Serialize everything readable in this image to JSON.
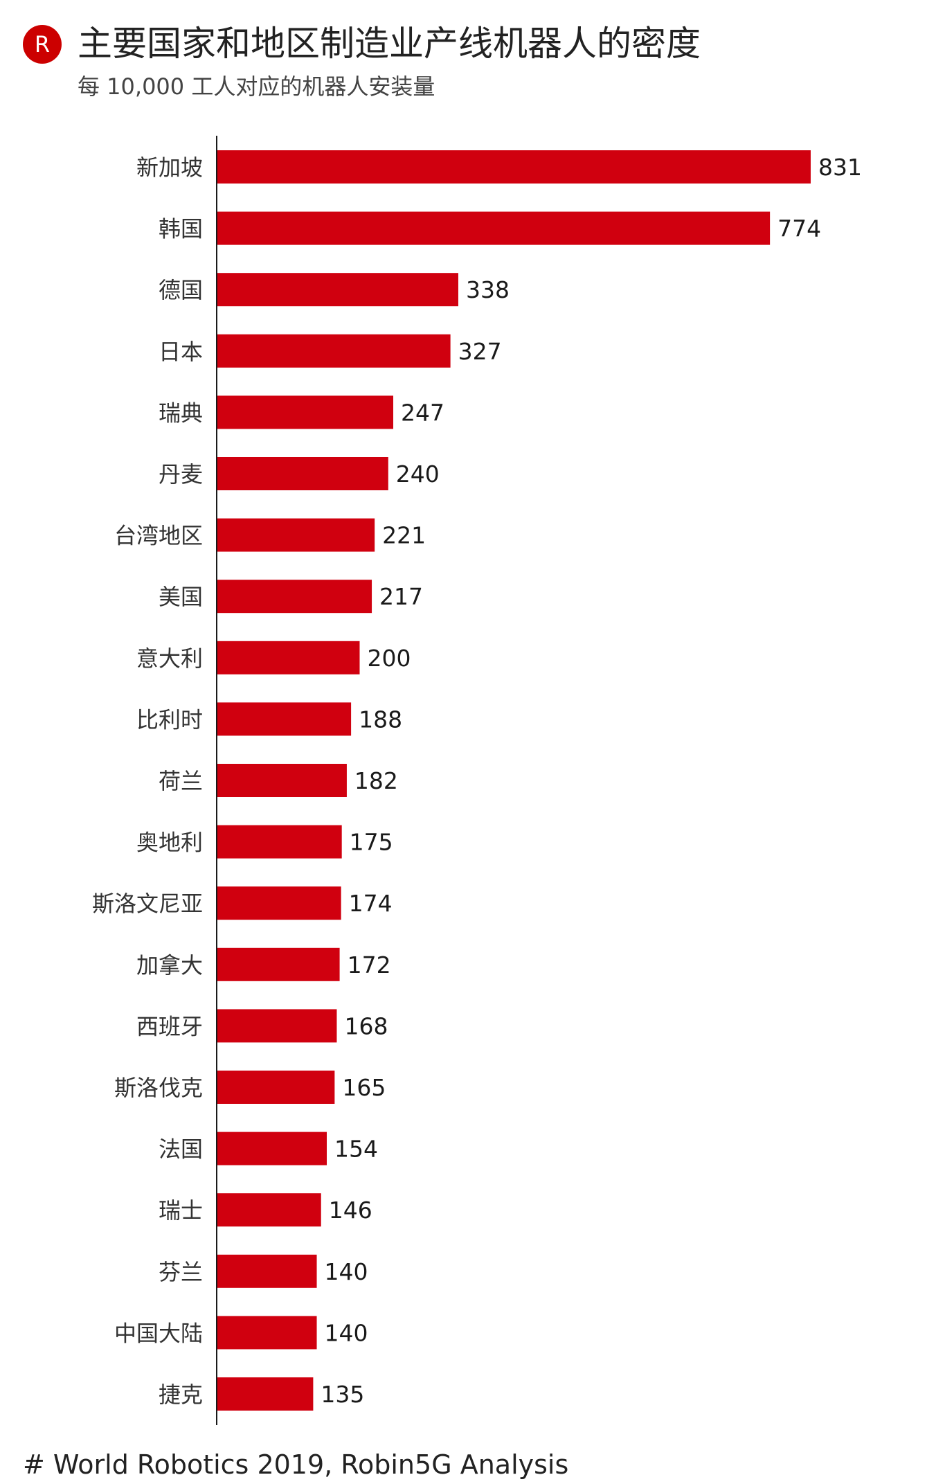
{
  "header": {
    "logo_letter": "R",
    "title": "主要国家和地区制造业产线机器人的密度",
    "subtitle": "每 10,000 工人对应的机器人安装量"
  },
  "footer": {
    "source": "# World Robotics 2019, Robin5G Analysis"
  },
  "colors": {
    "bar": "#d0000f",
    "logo": "#cc0000",
    "axis": "#1a1a1a",
    "text": "#222222"
  },
  "chart_data": {
    "type": "bar",
    "orientation": "horizontal",
    "categories": [
      "新加坡",
      "韩国",
      "德国",
      "日本",
      "瑞典",
      "丹麦",
      "台湾地区",
      "美国",
      "意大利",
      "比利时",
      "荷兰",
      "奥地利",
      "斯洛文尼亚",
      "加拿大",
      "西班牙",
      "斯洛伐克",
      "法国",
      "瑞士",
      "芬兰",
      "中国大陆",
      "捷克"
    ],
    "values": [
      831,
      774,
      338,
      327,
      247,
      240,
      221,
      217,
      200,
      188,
      182,
      175,
      174,
      172,
      168,
      165,
      154,
      146,
      140,
      140,
      135
    ],
    "data_labels": true,
    "xlim": [
      0,
      831
    ],
    "grid": false,
    "legend": "none"
  }
}
